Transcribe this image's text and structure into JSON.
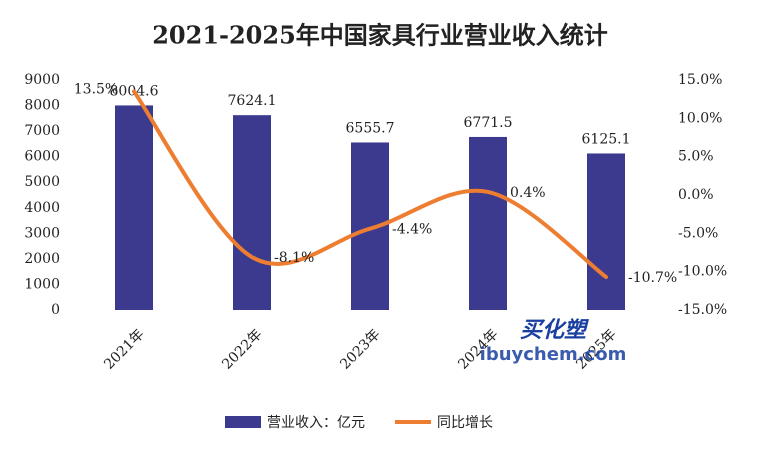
{
  "chart_data": {
    "type": "bar",
    "title": "2021-2025年中国家具行业营业收入统计",
    "categories": [
      "2021年",
      "2022年",
      "2023年",
      "2024年",
      "2025年"
    ],
    "series": [
      {
        "name": "营业收入：亿元",
        "type": "bar",
        "color": "#3b3a8f",
        "values": [
          8004.6,
          7624.1,
          6555.7,
          6771.5,
          6125.1
        ]
      },
      {
        "name": "同比增长",
        "type": "line",
        "axis": "y2",
        "color": "#ed7d31",
        "values": [
          13.5,
          -8.1,
          -4.4,
          0.4,
          -10.7
        ],
        "value_labels": [
          "13.5%",
          "-8.1%",
          "-4.4%",
          "0.4%",
          "-10.7%"
        ]
      }
    ],
    "ylim": [
      0,
      9000
    ],
    "yticks": [
      0,
      1000,
      2000,
      3000,
      4000,
      5000,
      6000,
      7000,
      8000,
      9000
    ],
    "y2lim": [
      -15,
      15
    ],
    "y2ticks": [
      {
        "value": -15,
        "label": "-15.0%"
      },
      {
        "value": -10,
        "label": "-10.0%"
      },
      {
        "value": -5,
        "label": "-5.0%"
      },
      {
        "value": 0,
        "label": "0.0%"
      },
      {
        "value": 5,
        "label": "5.0%"
      },
      {
        "value": 10,
        "label": "10.0%"
      },
      {
        "value": 15,
        "label": "15.0%"
      }
    ],
    "legend": "bottom",
    "watermark": [
      "买化塑",
      "ibuychem.com"
    ]
  }
}
